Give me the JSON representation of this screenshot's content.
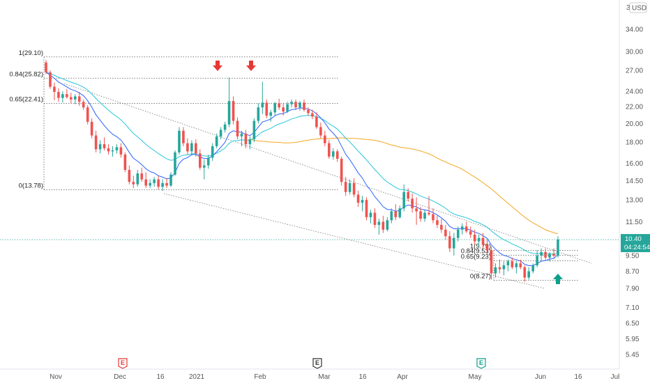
{
  "chart_data": {
    "type": "candlestick",
    "currency": "USD",
    "price_axis": {
      "scale": "log",
      "ticks": [
        "34.00",
        "30.00",
        "27.00",
        "24.00",
        "22.00",
        "20.00",
        "18.00",
        "16.00",
        "14.50",
        "13.00",
        "11.50",
        "10.40",
        "9.50",
        "8.70",
        "7.90",
        "7.10",
        "6.50",
        "5.95",
        "5.45"
      ],
      "partial_top_label": "3"
    },
    "time_axis": {
      "labels": [
        "Nov",
        "Dec",
        "16",
        "2021",
        "Feb",
        "Mar",
        "16",
        "Apr",
        "May",
        "Jun",
        "16",
        "Jul"
      ]
    },
    "last_price": {
      "value": "10.40",
      "countdown": "04:24:54"
    },
    "fib_upper": {
      "levels": [
        {
          "label": "1(29.10)",
          "value": 29.1
        },
        {
          "label": "0.84(25.82)",
          "value": 25.82
        },
        {
          "label": "0.65(22.41)",
          "value": 22.41
        },
        {
          "label": "0(13.78)",
          "value": 13.78
        }
      ]
    },
    "fib_lower": {
      "levels": [
        {
          "label": "1(9.79)",
          "value": 9.79
        },
        {
          "label": "0.84(9.53)",
          "value": 9.53
        },
        {
          "label": "0.65(9.23)",
          "value": 9.23
        },
        {
          "label": "0(8.27)",
          "value": 8.27
        }
      ]
    },
    "event_badges": [
      {
        "label": "E",
        "color": "#e53935"
      },
      {
        "label": "E",
        "color": "#333333"
      },
      {
        "label": "E",
        "color": "#0e9f8a"
      }
    ],
    "arrows": [
      {
        "direction": "down",
        "color": "#e53935"
      },
      {
        "direction": "down",
        "color": "#e53935"
      },
      {
        "direction": "up",
        "color": "#0e9f8a"
      }
    ],
    "colors": {
      "up": "#26a69a",
      "down": "#ef5350",
      "ema_fast": "#2962ff",
      "ema_mid": "#26c6da",
      "sma_slow": "#f5a623",
      "last_price_bg": "#26a69a",
      "countdown_bg": "#26a69a",
      "level_line": "#555555",
      "wedge_line": "#777777"
    },
    "candles": [
      [
        28.2,
        28.6,
        26.4,
        26.7
      ],
      [
        26.7,
        27.0,
        24.3,
        24.6
      ],
      [
        24.6,
        25.2,
        22.8,
        23.9
      ],
      [
        23.9,
        24.4,
        22.6,
        23.1
      ],
      [
        23.1,
        24.0,
        22.5,
        23.6
      ],
      [
        23.6,
        24.3,
        23.0,
        23.2
      ],
      [
        23.2,
        23.8,
        22.4,
        22.9
      ],
      [
        22.9,
        23.6,
        22.3,
        23.3
      ],
      [
        23.3,
        23.9,
        22.1,
        22.6
      ],
      [
        22.6,
        22.9,
        21.6,
        21.9
      ],
      [
        21.9,
        22.2,
        19.9,
        20.2
      ],
      [
        20.2,
        20.6,
        18.4,
        18.7
      ],
      [
        18.7,
        19.2,
        17.0,
        17.3
      ],
      [
        17.3,
        18.2,
        16.9,
        17.8
      ],
      [
        17.8,
        18.5,
        17.2,
        17.4
      ],
      [
        17.4,
        17.8,
        16.8,
        17.1
      ],
      [
        17.1,
        17.6,
        16.6,
        17.2
      ],
      [
        17.2,
        17.8,
        16.9,
        17.5
      ],
      [
        17.5,
        17.9,
        16.5,
        16.8
      ],
      [
        16.8,
        17.0,
        15.2,
        15.4
      ],
      [
        15.4,
        15.8,
        14.2,
        14.4
      ],
      [
        14.4,
        14.9,
        13.9,
        14.2
      ],
      [
        14.2,
        15.4,
        14.0,
        15.1
      ],
      [
        15.1,
        15.6,
        14.4,
        14.6
      ],
      [
        14.6,
        15.2,
        13.9,
        14.1
      ],
      [
        14.1,
        14.6,
        13.9,
        14.3
      ],
      [
        14.3,
        14.8,
        14.0,
        14.6
      ],
      [
        14.6,
        14.9,
        13.8,
        14.0
      ],
      [
        14.0,
        14.6,
        13.7,
        14.3
      ],
      [
        14.3,
        14.7,
        13.9,
        14.1
      ],
      [
        14.1,
        15.2,
        14.0,
        15.0
      ],
      [
        15.0,
        17.2,
        14.9,
        17.0
      ],
      [
        17.0,
        19.6,
        16.8,
        19.2
      ],
      [
        19.2,
        19.6,
        17.6,
        17.9
      ],
      [
        17.9,
        18.4,
        16.8,
        17.1
      ],
      [
        17.1,
        18.2,
        16.7,
        17.9
      ],
      [
        17.9,
        18.3,
        16.6,
        16.9
      ],
      [
        16.9,
        17.3,
        15.4,
        15.6
      ],
      [
        15.6,
        16.3,
        14.6,
        15.8
      ],
      [
        15.8,
        16.8,
        15.5,
        16.5
      ],
      [
        16.5,
        17.9,
        16.2,
        17.6
      ],
      [
        17.6,
        18.9,
        17.4,
        18.6
      ],
      [
        18.6,
        19.6,
        18.3,
        19.3
      ],
      [
        19.3,
        20.2,
        19.0,
        19.9
      ],
      [
        19.9,
        25.9,
        19.6,
        22.7
      ],
      [
        22.7,
        23.3,
        19.9,
        20.3
      ],
      [
        20.3,
        20.7,
        18.3,
        18.6
      ],
      [
        18.6,
        19.2,
        17.6,
        18.9
      ],
      [
        18.9,
        19.3,
        17.4,
        17.8
      ],
      [
        17.8,
        18.6,
        17.3,
        18.3
      ],
      [
        18.3,
        20.6,
        18.0,
        20.3
      ],
      [
        20.3,
        22.4,
        20.0,
        21.9
      ],
      [
        21.9,
        25.3,
        21.1,
        22.5
      ],
      [
        22.5,
        22.9,
        20.6,
        20.9
      ],
      [
        20.9,
        21.6,
        20.2,
        21.3
      ],
      [
        21.3,
        22.6,
        20.9,
        22.4
      ],
      [
        22.4,
        23.0,
        21.6,
        21.9
      ],
      [
        21.9,
        22.4,
        20.9,
        21.4
      ],
      [
        21.4,
        22.6,
        21.2,
        22.3
      ],
      [
        22.3,
        22.9,
        21.9,
        22.6
      ],
      [
        22.6,
        22.9,
        21.6,
        21.9
      ],
      [
        21.9,
        22.7,
        21.5,
        22.5
      ],
      [
        22.5,
        22.9,
        21.4,
        21.6
      ],
      [
        21.6,
        21.9,
        20.9,
        21.2
      ],
      [
        21.2,
        21.6,
        20.5,
        20.8
      ],
      [
        20.8,
        21.3,
        19.4,
        19.6
      ],
      [
        19.6,
        20.1,
        18.4,
        18.7
      ],
      [
        18.7,
        19.2,
        17.6,
        17.9
      ],
      [
        17.9,
        18.2,
        16.4,
        16.6
      ],
      [
        16.6,
        17.4,
        16.3,
        17.1
      ],
      [
        17.1,
        17.3,
        16.1,
        16.4
      ],
      [
        16.4,
        16.6,
        14.1,
        14.4
      ],
      [
        14.4,
        14.8,
        13.3,
        13.6
      ],
      [
        13.6,
        14.6,
        13.4,
        14.3
      ],
      [
        14.3,
        14.7,
        13.2,
        13.4
      ],
      [
        13.4,
        13.7,
        12.5,
        12.8
      ],
      [
        12.8,
        13.3,
        12.2,
        13.0
      ],
      [
        13.0,
        13.2,
        11.6,
        11.8
      ],
      [
        11.8,
        12.3,
        11.4,
        12.1
      ],
      [
        12.1,
        12.4,
        11.1,
        11.3
      ],
      [
        11.3,
        11.7,
        10.7,
        11.5
      ],
      [
        11.5,
        11.9,
        10.8,
        11.0
      ],
      [
        11.0,
        11.8,
        10.9,
        11.6
      ],
      [
        11.6,
        12.4,
        11.4,
        12.2
      ],
      [
        12.2,
        12.7,
        11.6,
        11.8
      ],
      [
        11.8,
        12.6,
        11.7,
        12.4
      ],
      [
        12.4,
        14.2,
        12.2,
        13.6
      ],
      [
        13.6,
        13.9,
        12.9,
        13.1
      ],
      [
        13.1,
        13.5,
        12.1,
        12.4
      ],
      [
        12.4,
        13.2,
        11.3,
        12.2
      ],
      [
        12.2,
        12.5,
        11.5,
        11.7
      ],
      [
        11.7,
        12.3,
        11.5,
        12.1
      ],
      [
        12.1,
        13.3,
        11.9,
        12.0
      ],
      [
        12.0,
        12.4,
        11.4,
        11.6
      ],
      [
        11.6,
        11.9,
        11.1,
        11.3
      ],
      [
        11.3,
        11.7,
        10.8,
        11.0
      ],
      [
        11.0,
        11.3,
        10.4,
        10.6
      ],
      [
        10.6,
        10.9,
        9.7,
        9.9
      ],
      [
        9.9,
        10.8,
        9.5,
        10.5
      ],
      [
        10.5,
        11.2,
        10.3,
        11.0
      ],
      [
        11.0,
        11.4,
        10.7,
        11.2
      ],
      [
        11.2,
        11.5,
        10.8,
        10.9
      ],
      [
        10.9,
        11.2,
        10.5,
        10.7
      ],
      [
        10.7,
        11.0,
        10.1,
        10.3
      ],
      [
        10.3,
        10.7,
        10.0,
        10.5
      ],
      [
        10.5,
        10.8,
        9.9,
        10.1
      ],
      [
        10.1,
        10.4,
        9.6,
        9.8
      ],
      [
        9.8,
        10.0,
        8.3,
        8.6
      ],
      [
        8.6,
        9.1,
        8.4,
        8.9
      ],
      [
        8.9,
        9.3,
        8.6,
        8.8
      ],
      [
        8.8,
        9.2,
        8.5,
        9.0
      ],
      [
        9.0,
        9.3,
        8.7,
        9.2
      ],
      [
        9.2,
        9.4,
        8.8,
        8.9
      ],
      [
        8.9,
        9.2,
        8.6,
        9.1
      ],
      [
        9.1,
        9.3,
        8.8,
        8.9
      ],
      [
        8.9,
        9.0,
        8.2,
        8.4
      ],
      [
        8.4,
        8.9,
        8.3,
        8.7
      ],
      [
        8.7,
        9.1,
        8.6,
        9.0
      ],
      [
        9.0,
        9.8,
        8.9,
        9.5
      ],
      [
        9.5,
        9.9,
        9.2,
        9.7
      ],
      [
        9.7,
        9.9,
        9.3,
        9.4
      ],
      [
        9.4,
        9.7,
        9.2,
        9.6
      ],
      [
        9.6,
        9.9,
        9.4,
        9.5
      ],
      [
        9.5,
        10.6,
        9.4,
        10.4
      ]
    ]
  }
}
